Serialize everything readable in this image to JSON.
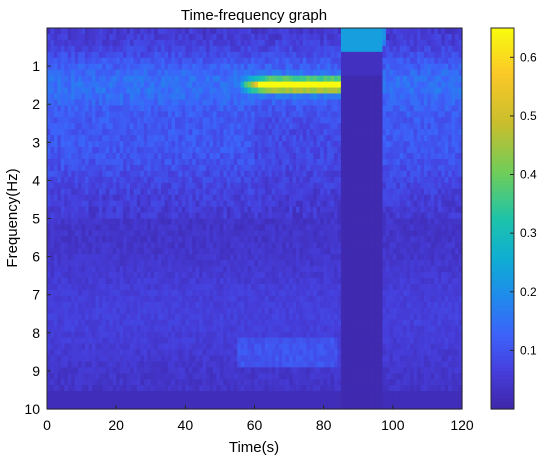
{
  "chart_data": {
    "type": "heatmap",
    "title": "Time-frequency graph",
    "xlabel": "Time(s)",
    "ylabel": "Frequency(Hz)",
    "xlim": [
      0,
      120
    ],
    "ylim": [
      0,
      10
    ],
    "y_reversed": true,
    "x_ticks": [
      "0",
      "20",
      "40",
      "60",
      "80",
      "100",
      "120"
    ],
    "y_ticks": [
      "1",
      "2",
      "3",
      "4",
      "5",
      "6",
      "7",
      "8",
      "9",
      "10"
    ],
    "colorbar": {
      "colormap": "parula",
      "range": [
        0,
        0.65
      ],
      "ticks": [
        "0.1",
        "0.2",
        "0.3",
        "0.4",
        "0.5",
        "0.6"
      ]
    },
    "features": [
      {
        "kind": "ridge",
        "t": [
          55,
          85
        ],
        "f": 1.5,
        "magnitude": 0.6
      },
      {
        "kind": "band",
        "t": [
          85,
          98
        ],
        "f": [
          0,
          0.5
        ],
        "magnitude": 0.22
      },
      {
        "kind": "band",
        "t": [
          55,
          84
        ],
        "f": [
          8.2,
          8.9
        ],
        "magnitude": 0.12
      },
      {
        "kind": "quiet_gap",
        "t": [
          85,
          97
        ],
        "f": [
          1,
          10
        ],
        "magnitude": 0.0
      }
    ],
    "colors": {
      "low": "#3E26A8",
      "mid": "#1F97D9",
      "high": "#F9FB0E"
    }
  }
}
